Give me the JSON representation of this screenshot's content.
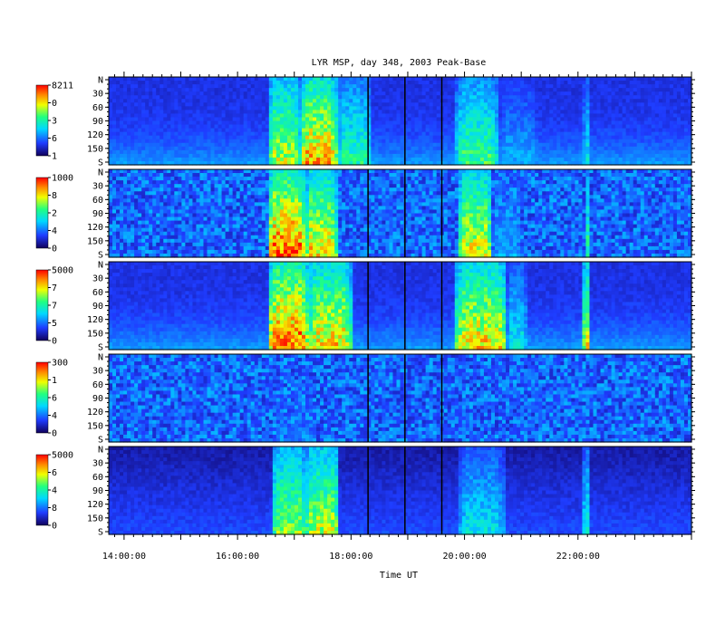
{
  "chart_data": {
    "type": "heatmap",
    "title": "LYR MSP, day 348, 2003 Peak-Base",
    "xlabel": "Time UT",
    "x_ticks": [
      "14:00:00",
      "16:00:00",
      "18:00:00",
      "20:00:00",
      "22:00:00"
    ],
    "x_tick_hours": [
      14,
      16,
      18,
      20,
      22
    ],
    "x_range_hours": [
      13.73,
      24.0
    ],
    "y_range_deg": [
      0,
      180
    ],
    "y_ticks": [
      "N",
      "30",
      "60",
      "90",
      "120",
      "150",
      "S"
    ],
    "data_gaps_hours": [
      18.3,
      18.95,
      19.6
    ],
    "panels": [
      {
        "colorbar_labels": [
          "8211",
          "0",
          "3",
          "6",
          "1"
        ],
        "color_min": 1,
        "color_max": 8211,
        "background": "mid",
        "events": [
          {
            "start": 16.55,
            "end": 17.1,
            "level": 0.75
          },
          {
            "start": 17.1,
            "end": 17.75,
            "level": 0.9
          },
          {
            "start": 17.75,
            "end": 18.35,
            "level": 0.55
          },
          {
            "start": 19.85,
            "end": 20.6,
            "level": 0.6
          },
          {
            "start": 20.6,
            "end": 21.3,
            "level": 0.35
          },
          {
            "start": 22.1,
            "end": 22.2,
            "level": 0.45
          }
        ]
      },
      {
        "colorbar_labels": [
          "1000",
          "8",
          "2",
          "4",
          "0"
        ],
        "color_min": 0,
        "color_max": 1000,
        "background": "noise",
        "events": [
          {
            "start": 16.55,
            "end": 17.2,
            "level": 1.0
          },
          {
            "start": 17.2,
            "end": 17.75,
            "level": 0.85
          },
          {
            "start": 19.9,
            "end": 20.5,
            "level": 0.8
          },
          {
            "start": 20.5,
            "end": 21.0,
            "level": 0.35
          },
          {
            "start": 22.12,
            "end": 22.18,
            "level": 0.6
          }
        ]
      },
      {
        "colorbar_labels": [
          "5000",
          "7",
          "7",
          "5",
          "0"
        ],
        "color_min": 0,
        "color_max": 5000,
        "background": "mid",
        "events": [
          {
            "start": 16.55,
            "end": 17.25,
            "level": 1.0
          },
          {
            "start": 17.25,
            "end": 18.0,
            "level": 0.85
          },
          {
            "start": 19.85,
            "end": 20.75,
            "level": 0.85
          },
          {
            "start": 20.75,
            "end": 21.1,
            "level": 0.45
          },
          {
            "start": 22.1,
            "end": 22.2,
            "level": 0.8
          }
        ]
      },
      {
        "colorbar_labels": [
          "300",
          "1",
          "6",
          "4",
          "0"
        ],
        "color_min": 0,
        "color_max": 300,
        "background": "noise",
        "events": [
          {
            "start": 16.6,
            "end": 17.4,
            "level": 0.25
          }
        ]
      },
      {
        "colorbar_labels": [
          "5000",
          "6",
          "4",
          "8",
          "0"
        ],
        "color_min": 0,
        "color_max": 5000,
        "background": "dark",
        "events": [
          {
            "start": 16.6,
            "end": 17.2,
            "level": 0.7
          },
          {
            "start": 17.2,
            "end": 17.8,
            "level": 0.75
          },
          {
            "start": 19.9,
            "end": 20.7,
            "level": 0.45
          },
          {
            "start": 22.1,
            "end": 22.2,
            "level": 0.5
          }
        ]
      }
    ]
  }
}
